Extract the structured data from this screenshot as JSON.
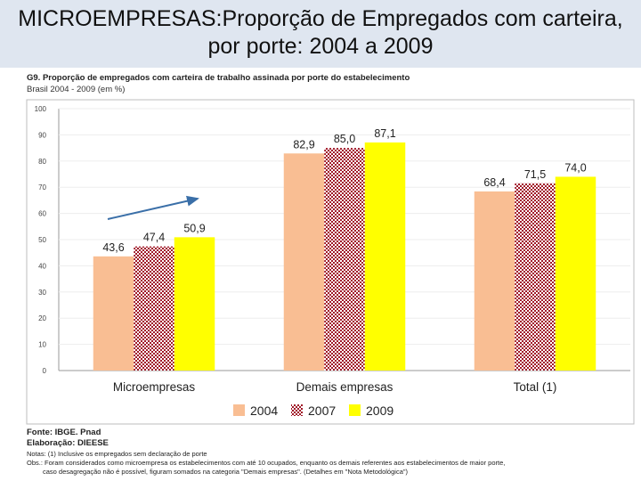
{
  "slide": {
    "title_line1": "MICROEMPRESAS:Proporção de Empregados com carteira,",
    "title_line2": "por porte: 2004 a 2009"
  },
  "figure": {
    "heading": "G9. Proporção de empregados com carteira de trabalho assinada por porte do estabelecimento",
    "subheading": "Brasil 2004 - 2009 (em %)"
  },
  "chart_data": {
    "type": "bar",
    "categories": [
      "Microempresas",
      "Demais empresas",
      "Total (1)"
    ],
    "series": [
      {
        "name": "2004",
        "values": [
          43.6,
          82.9,
          68.4
        ],
        "labels": [
          "43,6",
          "82,9",
          "68,4"
        ],
        "color": "#f9be93",
        "pattern": "solid"
      },
      {
        "name": "2007",
        "values": [
          47.4,
          85.0,
          71.5
        ],
        "labels": [
          "47,4",
          "85,0",
          "71,5"
        ],
        "color": "#a01828",
        "pattern": "checkered"
      },
      {
        "name": "2009",
        "values": [
          50.9,
          87.1,
          74.0
        ],
        "labels": [
          "50,9",
          "87,1",
          "74,0"
        ],
        "color": "#ffff00",
        "pattern": "solid"
      }
    ],
    "ylim": [
      0,
      100
    ],
    "yticks": [
      "0",
      "10",
      "20",
      "30",
      "40",
      "50",
      "60",
      "70",
      "80",
      "90",
      "100"
    ],
    "legend_position": "bottom",
    "annotation": "upward trend arrow over Microempresas bars",
    "arrow_color": "#3a6fa8"
  },
  "footer": {
    "source": "Fonte: IBGE. Pnad",
    "elaboration": "Elaboração: DIEESE",
    "note1": "Notas: (1) Inclusive os empregados sem declaração de porte",
    "note2": "Obs.: Foram considerados como microempresa os estabelecimentos com até 10 ocupados, enquanto os demais referentes aos estabelecimentos de maior porte,",
    "note3": "caso desagregação não é possível, figuram somados na categoria \"Demais empresas\". (Detalhes em \"Nota Metodológica\")"
  }
}
